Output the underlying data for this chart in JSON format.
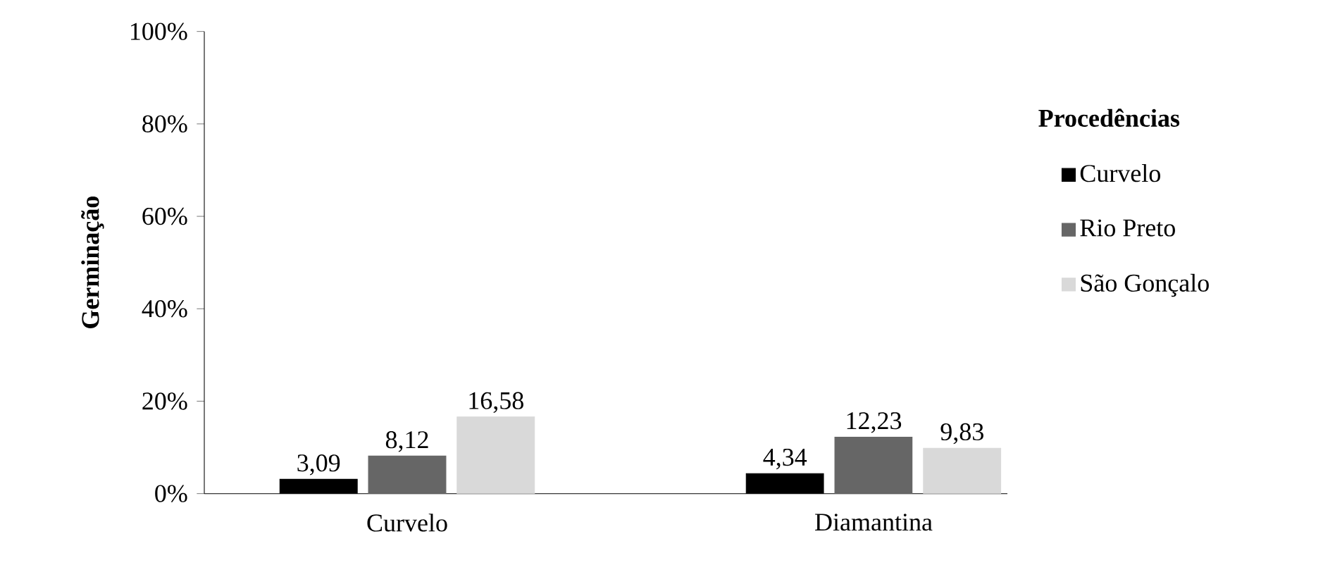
{
  "chart_data": {
    "type": "bar",
    "ylabel": "Germinação",
    "legend_title": "Procedências",
    "categories": [
      "Curvelo",
      "Diamantina"
    ],
    "series": [
      {
        "name": "Curvelo",
        "color": "#000000",
        "values": [
          3.09,
          4.34
        ],
        "value_labels": [
          "3,09",
          "4,34"
        ]
      },
      {
        "name": "Rio Preto",
        "color": "#666666",
        "values": [
          8.12,
          12.23
        ],
        "value_labels": [
          "8,12",
          "12,23"
        ]
      },
      {
        "name": "São Gonçalo",
        "color": "#d9d9d9",
        "values": [
          16.58,
          9.83
        ],
        "value_labels": [
          "16,58",
          "9,83"
        ]
      }
    ],
    "ylim": [
      0,
      100
    ],
    "yticks": [
      {
        "value": 0,
        "label": "0%"
      },
      {
        "value": 20,
        "label": "20%"
      },
      {
        "value": 40,
        "label": "40%"
      },
      {
        "value": 60,
        "label": "60%"
      },
      {
        "value": 80,
        "label": "80%"
      },
      {
        "value": 100,
        "label": "100%"
      }
    ],
    "grid": false,
    "legend": "right"
  }
}
